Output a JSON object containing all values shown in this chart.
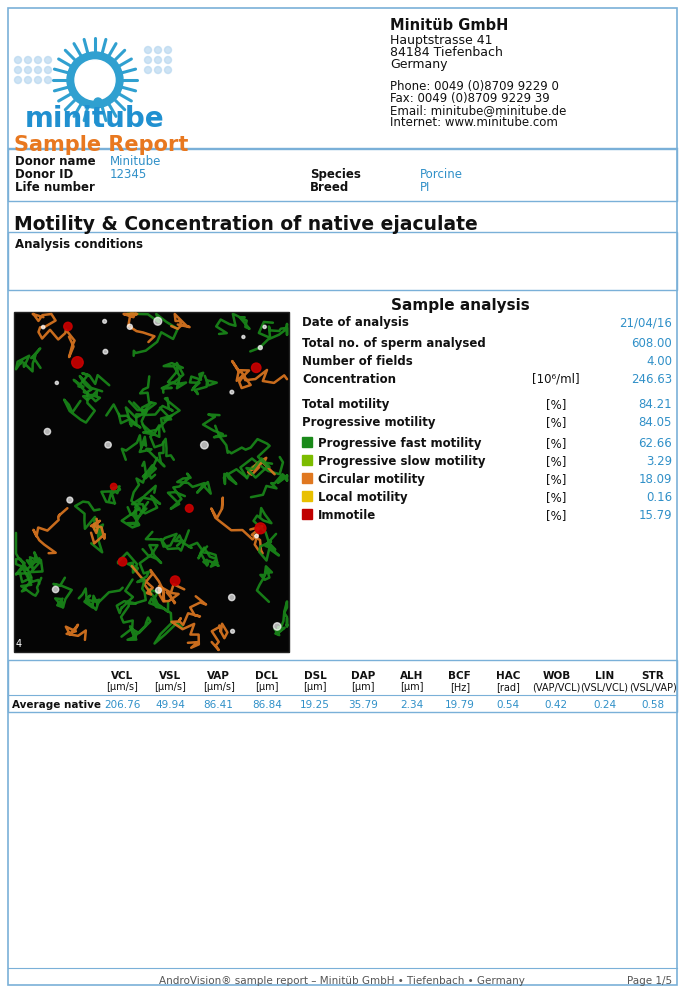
{
  "company_name": "Minitüb GmbH",
  "company_address1": "Hauptstrasse 41",
  "company_address2": "84184 Tiefenbach",
  "company_address3": "Germany",
  "phone": "Phone: 0049 (0)8709 9229 0",
  "fax": "Fax: 0049 (0)8709 9229 39",
  "email": "Email: minitube@minitube.de",
  "internet": "Internet: www.minitube.com",
  "report_title": "Sample Report",
  "donor_name_label": "Donor name",
  "donor_name_value": "Minitube",
  "donor_id_label": "Donor ID",
  "donor_id_value": "12345",
  "life_number_label": "Life number",
  "species_label": "Species",
  "species_value": "Porcine",
  "breed_label": "Breed",
  "breed_value": "PI",
  "section_title": "Motility & Concentration of native ejaculate",
  "analysis_conditions_label": "Analysis conditions",
  "sample_analysis_title": "Sample analysis",
  "date_label": "Date of analysis",
  "date_value": "21/04/16",
  "total_sperm_label": "Total no. of sperm analysed",
  "total_sperm_value": "608.00",
  "fields_label": "Number of fields",
  "fields_value": "4.00",
  "conc_label": "Concentration",
  "conc_unit": "[10⁶/ml]",
  "conc_value": "246.63",
  "total_motility_label": "Total motility",
  "total_motility_unit": "[%]",
  "total_motility_value": "84.21",
  "prog_motility_label": "Progressive motility",
  "prog_motility_unit": "[%]",
  "prog_motility_value": "84.05",
  "categories": [
    {
      "color": "#1a8a1a",
      "label": "Progressive fast motility",
      "unit": "[%]",
      "value": "62.66"
    },
    {
      "color": "#7cbc00",
      "label": "Progressive slow motility",
      "unit": "[%]",
      "value": "3.29"
    },
    {
      "color": "#e07820",
      "label": "Circular motility",
      "unit": "[%]",
      "value": "18.09"
    },
    {
      "color": "#e8c000",
      "label": "Local motility",
      "unit": "[%]",
      "value": "0.16"
    },
    {
      "color": "#c00000",
      "label": "Immotile",
      "unit": "[%]",
      "value": "15.79"
    }
  ],
  "table_headers": [
    "VCL",
    "VSL",
    "VAP",
    "DCL",
    "DSL",
    "DAP",
    "ALH",
    "BCF",
    "HAC",
    "WOB",
    "LIN",
    "STR"
  ],
  "table_units": [
    "[μm/s]",
    "[μm/s]",
    "[μm/s]",
    "[μm]",
    "[μm]",
    "[μm]",
    "[μm]",
    "[Hz]",
    "[rad]",
    "(VAP/VCL)",
    "(VSL/VCL)",
    "(VSL/VAP)"
  ],
  "table_row_label": "Average native",
  "table_values": [
    "206.76",
    "49.94",
    "86.41",
    "86.84",
    "19.25",
    "35.79",
    "2.34",
    "19.79",
    "0.54",
    "0.42",
    "0.24",
    "0.58"
  ],
  "footer_text": "AndroVision® sample report – Minitüb GmbH • Tiefenbach • Germany",
  "page_text": "Page 1/5",
  "blue_color": "#3090c8",
  "orange_color": "#e87820",
  "border_color": "#7ab0d8",
  "bg_color": "#ffffff"
}
